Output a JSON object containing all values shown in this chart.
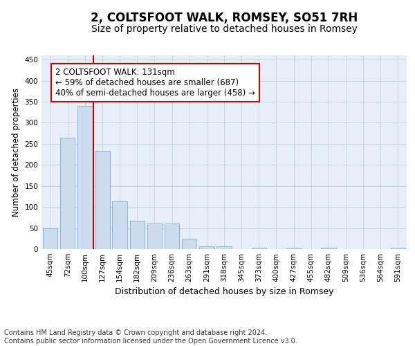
{
  "title": "2, COLTSFOOT WALK, ROMSEY, SO51 7RH",
  "subtitle": "Size of property relative to detached houses in Romsey",
  "xlabel": "Distribution of detached houses by size in Romsey",
  "ylabel": "Number of detached properties",
  "bar_labels": [
    "45sqm",
    "72sqm",
    "100sqm",
    "127sqm",
    "154sqm",
    "182sqm",
    "209sqm",
    "236sqm",
    "263sqm",
    "291sqm",
    "318sqm",
    "345sqm",
    "373sqm",
    "400sqm",
    "427sqm",
    "455sqm",
    "482sqm",
    "509sqm",
    "536sqm",
    "564sqm",
    "591sqm"
  ],
  "bar_values": [
    50,
    265,
    340,
    233,
    113,
    67,
    61,
    61,
    25,
    7,
    6,
    0,
    4,
    0,
    3,
    0,
    3,
    0,
    0,
    0,
    3
  ],
  "bar_color": "#ccdcee",
  "bar_edge_color": "#7bafd4",
  "vline_color": "#cc0000",
  "annotation_text": "2 COLTSFOOT WALK: 131sqm\n← 59% of detached houses are smaller (687)\n40% of semi-detached houses are larger (458) →",
  "annotation_box_color": "white",
  "annotation_box_edge_color": "#cc0000",
  "ylim": [
    0,
    460
  ],
  "yticks": [
    0,
    50,
    100,
    150,
    200,
    250,
    300,
    350,
    400,
    450
  ],
  "grid_color": "#c8d4e8",
  "bg_color": "#e8eef8",
  "footer": "Contains HM Land Registry data © Crown copyright and database right 2024.\nContains public sector information licensed under the Open Government Licence v3.0.",
  "title_fontsize": 12,
  "subtitle_fontsize": 10,
  "xlabel_fontsize": 9,
  "ylabel_fontsize": 8.5,
  "tick_fontsize": 7.5,
  "annotation_fontsize": 8.5,
  "footer_fontsize": 7
}
